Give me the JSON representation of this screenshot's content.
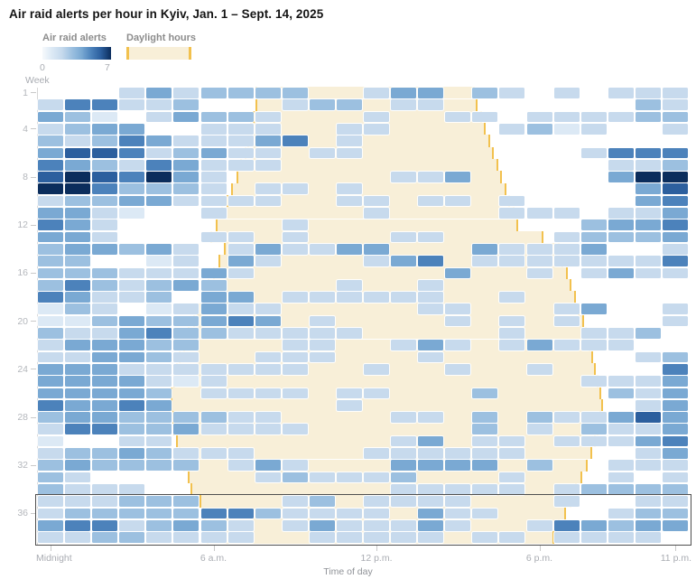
{
  "title": "Air raid alerts per hour in Kyiv, Jan. 1 – Sept. 14, 2025",
  "legend": {
    "alerts_label": "Air raid alerts",
    "alerts_min": "0",
    "alerts_max": "7",
    "daylight_label": "Daylight hours"
  },
  "axes": {
    "week_label": "Week",
    "week_ticks": [
      1,
      4,
      8,
      12,
      16,
      20,
      24,
      28,
      32,
      36
    ],
    "time_axis_title": "Time of day",
    "time_ticks": [
      {
        "hour": 0,
        "label": "Midnight"
      },
      {
        "hour": 6,
        "label": "6 a.m."
      },
      {
        "hour": 12,
        "label": "12 p.m."
      },
      {
        "hour": 18,
        "label": "6 p.m."
      },
      {
        "hour": 23,
        "label": "11 p.m."
      }
    ]
  },
  "colors": {
    "value_palette": [
      "transparent",
      "#dce9f5",
      "#c7daed",
      "#9cc0e0",
      "#7aa9d3",
      "#4c82bb",
      "#2c5f9e",
      "#0b2d5c"
    ],
    "daylight_fill": "#f8efd8",
    "daylight_edge": "#f2c14e",
    "highlight_box": "#4f4f4f",
    "scale_min_color": "#f6f9fc",
    "scale_max_color": "#0b2d5c"
  },
  "chart_data": {
    "type": "heatmap",
    "title": "Air raid alerts per hour in Kyiv, Jan. 1 – Sept. 14, 2025",
    "xlabel": "Time of day",
    "ylabel": "Week",
    "x_hours": [
      0,
      1,
      2,
      3,
      4,
      5,
      6,
      7,
      8,
      9,
      10,
      11,
      12,
      13,
      14,
      15,
      16,
      17,
      18,
      19,
      20,
      21,
      22,
      23
    ],
    "y_weeks": [
      1,
      2,
      3,
      4,
      5,
      6,
      7,
      8,
      9,
      10,
      11,
      12,
      13,
      14,
      15,
      16,
      17,
      18,
      19,
      20,
      21,
      22,
      23,
      24,
      25,
      26,
      27,
      28,
      29,
      30,
      31,
      32,
      33,
      34,
      35,
      36,
      37,
      38
    ],
    "value_range": [
      0,
      7
    ],
    "highlight_weeks": [
      35,
      38
    ],
    "values": [
      [
        0,
        0,
        0,
        2,
        4,
        2,
        3,
        3,
        3,
        3,
        0,
        0,
        2,
        4,
        4,
        0,
        3,
        2,
        0,
        2,
        0,
        2,
        2,
        2
      ],
      [
        2,
        5,
        5,
        2,
        2,
        3,
        0,
        0,
        0,
        2,
        3,
        3,
        0,
        2,
        2,
        0,
        0,
        0,
        0,
        0,
        0,
        0,
        3,
        2
      ],
      [
        4,
        3,
        1,
        0,
        2,
        4,
        3,
        3,
        2,
        0,
        0,
        0,
        2,
        0,
        0,
        2,
        2,
        0,
        2,
        2,
        2,
        2,
        3,
        3
      ],
      [
        2,
        3,
        4,
        4,
        0,
        0,
        2,
        2,
        2,
        0,
        0,
        2,
        2,
        0,
        0,
        0,
        0,
        2,
        3,
        1,
        2,
        0,
        0,
        2
      ],
      [
        3,
        2,
        3,
        5,
        4,
        2,
        2,
        2,
        4,
        5,
        0,
        2,
        0,
        0,
        0,
        0,
        0,
        0,
        0,
        0,
        0,
        0,
        0,
        0
      ],
      [
        4,
        6,
        6,
        5,
        2,
        3,
        4,
        2,
        2,
        0,
        2,
        2,
        0,
        0,
        0,
        0,
        0,
        0,
        0,
        0,
        2,
        5,
        5,
        5
      ],
      [
        5,
        4,
        3,
        2,
        5,
        4,
        2,
        2,
        2,
        0,
        0,
        0,
        0,
        0,
        0,
        0,
        0,
        0,
        0,
        0,
        0,
        2,
        2,
        3
      ],
      [
        6,
        7,
        6,
        5,
        7,
        4,
        2,
        0,
        0,
        0,
        0,
        0,
        0,
        2,
        2,
        4,
        0,
        0,
        0,
        0,
        0,
        4,
        7,
        7
      ],
      [
        7,
        7,
        5,
        3,
        3,
        3,
        2,
        0,
        2,
        2,
        0,
        2,
        0,
        0,
        0,
        0,
        0,
        0,
        0,
        0,
        0,
        0,
        4,
        6
      ],
      [
        2,
        3,
        3,
        4,
        4,
        2,
        2,
        2,
        2,
        0,
        0,
        2,
        2,
        0,
        2,
        2,
        0,
        2,
        0,
        0,
        0,
        0,
        4,
        5
      ],
      [
        4,
        4,
        2,
        1,
        0,
        0,
        2,
        0,
        0,
        0,
        0,
        0,
        2,
        0,
        0,
        0,
        0,
        2,
        2,
        2,
        0,
        2,
        2,
        4
      ],
      [
        5,
        4,
        2,
        0,
        0,
        0,
        0,
        0,
        0,
        2,
        0,
        0,
        0,
        0,
        0,
        0,
        0,
        0,
        0,
        0,
        3,
        4,
        4,
        5
      ],
      [
        4,
        4,
        2,
        0,
        0,
        0,
        2,
        2,
        0,
        2,
        0,
        0,
        0,
        2,
        2,
        0,
        0,
        0,
        0,
        2,
        3,
        3,
        3,
        4
      ],
      [
        3,
        4,
        4,
        3,
        4,
        2,
        0,
        2,
        4,
        2,
        2,
        4,
        4,
        0,
        0,
        0,
        4,
        2,
        2,
        2,
        4,
        0,
        0,
        2
      ],
      [
        3,
        3,
        0,
        0,
        1,
        2,
        0,
        4,
        2,
        0,
        0,
        0,
        2,
        4,
        5,
        0,
        2,
        2,
        2,
        2,
        2,
        2,
        2,
        5
      ],
      [
        3,
        3,
        3,
        2,
        2,
        2,
        4,
        2,
        0,
        0,
        0,
        0,
        0,
        0,
        0,
        4,
        0,
        0,
        2,
        0,
        2,
        4,
        2,
        2
      ],
      [
        3,
        5,
        3,
        2,
        3,
        4,
        3,
        0,
        0,
        0,
        0,
        2,
        0,
        0,
        2,
        0,
        0,
        0,
        0,
        0,
        0,
        0,
        0,
        0
      ],
      [
        5,
        4,
        2,
        2,
        3,
        0,
        4,
        4,
        0,
        2,
        2,
        2,
        2,
        2,
        2,
        0,
        0,
        2,
        0,
        0,
        0,
        0,
        0,
        0
      ],
      [
        1,
        3,
        2,
        0,
        1,
        2,
        4,
        2,
        2,
        0,
        0,
        0,
        0,
        0,
        2,
        2,
        0,
        0,
        0,
        2,
        4,
        0,
        0,
        2
      ],
      [
        1,
        1,
        3,
        4,
        3,
        3,
        4,
        5,
        4,
        0,
        2,
        0,
        0,
        0,
        0,
        2,
        0,
        2,
        0,
        2,
        0,
        0,
        0,
        2
      ],
      [
        3,
        2,
        2,
        4,
        5,
        3,
        3,
        2,
        2,
        2,
        2,
        2,
        0,
        0,
        0,
        0,
        0,
        2,
        0,
        0,
        2,
        2,
        3,
        0
      ],
      [
        2,
        4,
        4,
        4,
        3,
        3,
        0,
        0,
        0,
        2,
        2,
        0,
        0,
        2,
        4,
        2,
        0,
        2,
        4,
        2,
        2,
        2,
        0,
        0
      ],
      [
        2,
        2,
        4,
        4,
        3,
        2,
        0,
        0,
        2,
        2,
        2,
        0,
        0,
        0,
        2,
        0,
        0,
        0,
        0,
        0,
        0,
        0,
        2,
        3
      ],
      [
        4,
        4,
        4,
        2,
        2,
        2,
        2,
        2,
        2,
        2,
        0,
        0,
        2,
        0,
        0,
        2,
        0,
        0,
        2,
        0,
        0,
        0,
        0,
        5
      ],
      [
        4,
        4,
        4,
        4,
        2,
        1,
        2,
        0,
        0,
        0,
        0,
        0,
        0,
        0,
        0,
        0,
        0,
        0,
        0,
        0,
        2,
        2,
        2,
        4
      ],
      [
        4,
        4,
        4,
        4,
        3,
        0,
        2,
        2,
        2,
        2,
        0,
        2,
        2,
        0,
        0,
        0,
        3,
        0,
        0,
        0,
        0,
        3,
        2,
        4
      ],
      [
        5,
        4,
        4,
        5,
        4,
        0,
        0,
        0,
        0,
        0,
        0,
        2,
        0,
        0,
        0,
        0,
        0,
        0,
        0,
        0,
        0,
        0,
        2,
        4
      ],
      [
        3,
        4,
        4,
        3,
        3,
        3,
        3,
        2,
        2,
        0,
        0,
        0,
        0,
        2,
        2,
        0,
        3,
        0,
        3,
        2,
        2,
        4,
        6,
        4
      ],
      [
        2,
        5,
        5,
        3,
        3,
        4,
        2,
        2,
        2,
        2,
        0,
        0,
        0,
        0,
        0,
        0,
        3,
        0,
        2,
        0,
        3,
        2,
        2,
        4
      ],
      [
        1,
        0,
        0,
        2,
        2,
        0,
        0,
        0,
        0,
        0,
        0,
        0,
        0,
        2,
        4,
        0,
        2,
        2,
        0,
        2,
        2,
        2,
        4,
        5
      ],
      [
        2,
        3,
        3,
        4,
        3,
        2,
        2,
        2,
        0,
        0,
        0,
        0,
        2,
        2,
        2,
        2,
        2,
        2,
        0,
        0,
        0,
        0,
        2,
        4
      ],
      [
        3,
        4,
        3,
        3,
        3,
        3,
        0,
        2,
        4,
        2,
        0,
        0,
        0,
        4,
        4,
        4,
        4,
        0,
        3,
        0,
        0,
        2,
        2,
        2
      ],
      [
        3,
        2,
        0,
        0,
        0,
        0,
        0,
        0,
        2,
        3,
        2,
        2,
        2,
        3,
        0,
        0,
        0,
        2,
        0,
        0,
        0,
        2,
        0,
        2
      ],
      [
        3,
        2,
        2,
        2,
        0,
        0,
        0,
        0,
        0,
        0,
        0,
        0,
        0,
        2,
        2,
        2,
        2,
        2,
        0,
        2,
        3,
        3,
        3,
        3
      ],
      [
        2,
        2,
        2,
        3,
        3,
        3,
        0,
        0,
        0,
        2,
        3,
        0,
        2,
        2,
        2,
        2,
        0,
        0,
        0,
        2,
        0,
        0,
        2,
        2
      ],
      [
        2,
        3,
        3,
        3,
        3,
        3,
        5,
        5,
        3,
        2,
        2,
        2,
        2,
        0,
        4,
        2,
        2,
        0,
        0,
        0,
        0,
        2,
        3,
        3
      ],
      [
        4,
        5,
        5,
        2,
        3,
        4,
        3,
        2,
        0,
        2,
        4,
        2,
        2,
        2,
        4,
        2,
        0,
        0,
        2,
        5,
        4,
        3,
        4,
        4
      ],
      [
        2,
        2,
        3,
        3,
        2,
        2,
        2,
        2,
        0,
        0,
        2,
        2,
        2,
        2,
        2,
        0,
        2,
        2,
        0,
        2,
        2,
        2,
        2,
        0
      ]
    ],
    "daylight_hours": [
      [
        8.0,
        16.1
      ],
      [
        8.0,
        16.2
      ],
      [
        7.9,
        16.35
      ],
      [
        7.8,
        16.5
      ],
      [
        7.7,
        16.65
      ],
      [
        7.6,
        16.8
      ],
      [
        7.45,
        16.95
      ],
      [
        7.3,
        17.1
      ],
      [
        7.1,
        17.25
      ],
      [
        6.95,
        17.4
      ],
      [
        6.75,
        17.55
      ],
      [
        6.55,
        17.7
      ],
      [
        6.35,
        18.6
      ],
      [
        6.85,
        19.2
      ],
      [
        6.65,
        19.35
      ],
      [
        6.45,
        19.5
      ],
      [
        6.25,
        19.65
      ],
      [
        6.05,
        19.8
      ],
      [
        5.85,
        19.95
      ],
      [
        5.7,
        20.1
      ],
      [
        5.5,
        20.2
      ],
      [
        5.35,
        20.35
      ],
      [
        5.2,
        20.45
      ],
      [
        5.1,
        20.55
      ],
      [
        5.0,
        20.65
      ],
      [
        4.9,
        20.75
      ],
      [
        4.9,
        20.8
      ],
      [
        4.95,
        20.75
      ],
      [
        5.0,
        20.65
      ],
      [
        5.1,
        20.55
      ],
      [
        5.2,
        20.4
      ],
      [
        5.35,
        20.25
      ],
      [
        5.5,
        20.05
      ],
      [
        5.6,
        19.85
      ],
      [
        5.95,
        19.65
      ],
      [
        6.05,
        19.45
      ],
      [
        6.1,
        19.2
      ],
      [
        6.2,
        19.0
      ]
    ]
  }
}
